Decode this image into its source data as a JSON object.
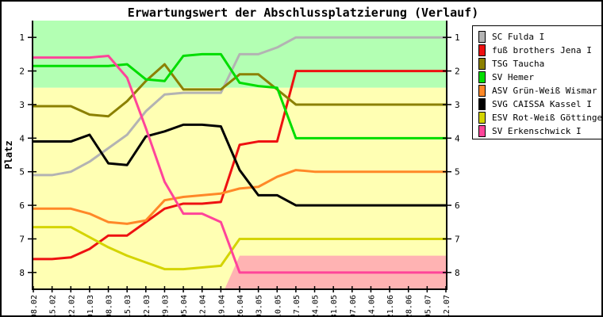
{
  "chart_data": {
    "type": "line",
    "title": "Erwartungswert der Abschlussplatzierung (Verlauf)",
    "ylabel": "Platz",
    "y_inverted": true,
    "ylim_places": [
      0.5,
      8.5
    ],
    "y_ticks": [
      1,
      2,
      3,
      4,
      5,
      6,
      7,
      8
    ],
    "legend_position": "right",
    "grid": false,
    "x": [
      "08.02",
      "15.02",
      "22.02",
      "01.03",
      "08.03",
      "15.03",
      "22.03",
      "29.03",
      "05.04",
      "12.04",
      "19.04",
      "26.04",
      "03.05",
      "10.05",
      "17.05",
      "24.05",
      "31.05",
      "07.06",
      "14.06",
      "21.06",
      "28.06",
      "05.07",
      "12.07"
    ],
    "series": [
      {
        "name": "SC Fulda I",
        "color": "#b3b3b3",
        "values": [
          5.1,
          5.1,
          5.0,
          4.7,
          4.3,
          3.9,
          3.2,
          2.7,
          2.65,
          2.65,
          2.65,
          1.5,
          1.5,
          1.3,
          1.0,
          1.0,
          1.0,
          1.0,
          1.0,
          1.0,
          1.0,
          1.0,
          1.0
        ]
      },
      {
        "name": "fuß brothers Jena I",
        "color": "#ee1111",
        "values": [
          7.6,
          7.6,
          7.55,
          7.3,
          6.9,
          6.9,
          6.5,
          6.1,
          5.95,
          5.95,
          5.9,
          4.2,
          4.1,
          4.1,
          2.0,
          2.0,
          2.0,
          2.0,
          2.0,
          2.0,
          2.0,
          2.0,
          2.0
        ]
      },
      {
        "name": "TSG Taucha",
        "color": "#8b8000",
        "values": [
          3.05,
          3.05,
          3.05,
          3.3,
          3.35,
          2.9,
          2.3,
          1.8,
          2.55,
          2.55,
          2.55,
          2.1,
          2.1,
          2.55,
          3.0,
          3.0,
          3.0,
          3.0,
          3.0,
          3.0,
          3.0,
          3.0,
          3.0
        ]
      },
      {
        "name": "SV Hemer",
        "color": "#00dd00",
        "values": [
          1.85,
          1.85,
          1.85,
          1.85,
          1.85,
          1.8,
          2.25,
          2.3,
          1.55,
          1.5,
          1.5,
          2.35,
          2.45,
          2.5,
          4.0,
          4.0,
          4.0,
          4.0,
          4.0,
          4.0,
          4.0,
          4.0,
          4.0
        ]
      },
      {
        "name": "ASV Grün-Weiß Wismar",
        "color": "#ff8828",
        "values": [
          6.1,
          6.1,
          6.1,
          6.25,
          6.5,
          6.55,
          6.45,
          5.85,
          5.75,
          5.7,
          5.65,
          5.5,
          5.45,
          5.15,
          4.95,
          5.0,
          5.0,
          5.0,
          5.0,
          5.0,
          5.0,
          5.0,
          5.0
        ]
      },
      {
        "name": "SVG CAISSA Kassel I",
        "color": "#000000",
        "values": [
          4.1,
          4.1,
          4.1,
          3.9,
          4.75,
          4.8,
          3.95,
          3.8,
          3.6,
          3.6,
          3.65,
          4.95,
          5.7,
          5.7,
          6.0,
          6.0,
          6.0,
          6.0,
          6.0,
          6.0,
          6.0,
          6.0,
          6.0
        ]
      },
      {
        "name": "ESV Rot-Weiß Göttingen I",
        "color": "#d4d400",
        "values": [
          6.65,
          6.65,
          6.65,
          6.95,
          7.25,
          7.5,
          7.7,
          7.9,
          7.9,
          7.85,
          7.8,
          7.0,
          7.0,
          7.0,
          7.0,
          7.0,
          7.0,
          7.0,
          7.0,
          7.0,
          7.0,
          7.0,
          7.0
        ]
      },
      {
        "name": "SV Erkenschwick I",
        "color": "#ff4499",
        "values": [
          1.6,
          1.6,
          1.6,
          1.6,
          1.55,
          2.2,
          3.7,
          5.3,
          6.25,
          6.25,
          6.5,
          8.0,
          8.0,
          8.0,
          8.0,
          8.0,
          8.0,
          8.0,
          8.0,
          8.0,
          8.0,
          8.0,
          8.0
        ]
      }
    ],
    "zones": {
      "promotion_zone": {
        "from_place": 0.5,
        "to_place": 2.5,
        "color": "#b3ffb3"
      },
      "midfield_zone": {
        "from_place": 2.5,
        "to_place": 8.5,
        "color": "#ffffb3"
      },
      "relegation_zone": {
        "from_place": 7.5,
        "to_place": 8.5,
        "color": "#ffb3b3",
        "x_start_index": 10.2,
        "x_full_index": 11
      }
    }
  }
}
